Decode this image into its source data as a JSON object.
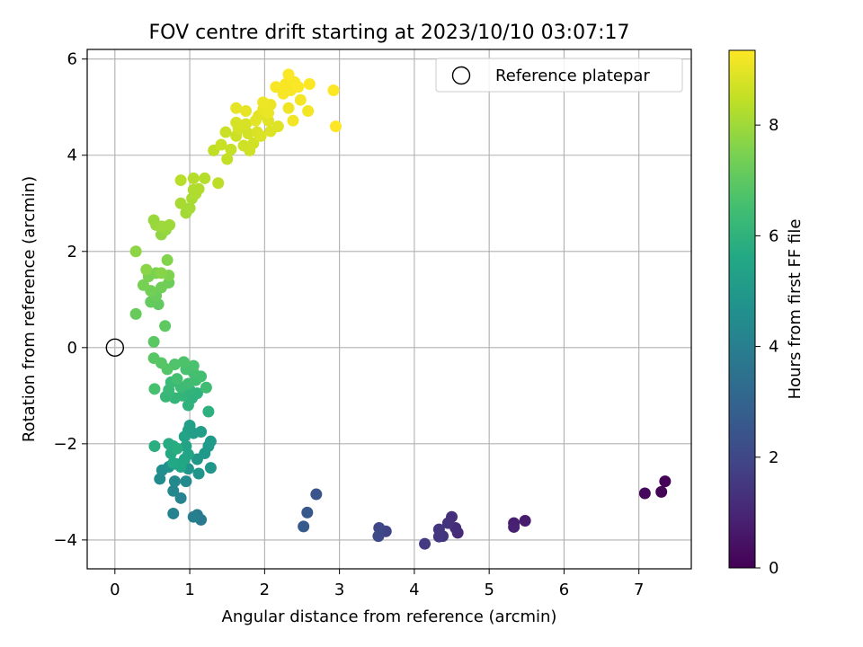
{
  "chart_data": {
    "type": "scatter",
    "title": "FOV centre drift starting at 2023/10/10 03:07:17",
    "xlabel": "Angular distance from reference (arcmin)",
    "ylabel": "Rotation from reference (arcmin)",
    "xlim": [
      -0.37,
      7.7
    ],
    "ylim": [
      -4.6,
      6.2
    ],
    "xticks": [
      0,
      1,
      2,
      3,
      4,
      5,
      6,
      7
    ],
    "yticks": [
      -4,
      -2,
      0,
      2,
      4,
      6
    ],
    "xtick_labels": [
      "0",
      "1",
      "2",
      "3",
      "4",
      "5",
      "6",
      "7"
    ],
    "ytick_labels": [
      "−4",
      "−2",
      "0",
      "2",
      "4",
      "6"
    ],
    "grid": true,
    "colormap": "viridis",
    "legend": {
      "placement": "top-right",
      "label": "Reference platepar",
      "marker": "open-circle"
    },
    "reference_point": {
      "x": 0,
      "y": 0
    },
    "colorbar": {
      "label": "Hours from first FF file",
      "range": [
        0,
        9.35
      ],
      "ticks": [
        0,
        2,
        4,
        6,
        8
      ],
      "tick_labels": [
        "0",
        "2",
        "4",
        "6",
        "8"
      ]
    },
    "series": [
      {
        "points": [
          [
            7.35,
            -2.78,
            0.05
          ],
          [
            7.3,
            -3.0,
            0.1
          ],
          [
            7.08,
            -3.03,
            0.2
          ],
          [
            5.48,
            -3.6,
            0.7
          ],
          [
            5.33,
            -3.65,
            0.8
          ],
          [
            5.33,
            -3.73,
            0.85
          ],
          [
            4.58,
            -3.85,
            1.1
          ],
          [
            4.55,
            -3.75,
            1.2
          ],
          [
            4.5,
            -3.52,
            1.25
          ],
          [
            4.45,
            -3.65,
            1.35
          ],
          [
            4.38,
            -3.92,
            1.4
          ],
          [
            4.33,
            -3.78,
            1.45
          ],
          [
            4.33,
            -3.93,
            1.5
          ],
          [
            4.14,
            -4.08,
            1.6
          ],
          [
            3.62,
            -3.82,
            1.9
          ],
          [
            3.53,
            -3.75,
            2.0
          ],
          [
            3.52,
            -3.92,
            2.05
          ],
          [
            2.69,
            -3.05,
            2.45
          ],
          [
            2.57,
            -3.43,
            2.55
          ],
          [
            2.52,
            -3.72,
            2.65
          ],
          [
            1.15,
            -3.58,
            3.8
          ],
          [
            1.1,
            -3.48,
            3.9
          ],
          [
            1.05,
            -3.52,
            4.0
          ],
          [
            0.78,
            -3.45,
            4.1
          ],
          [
            0.88,
            -3.13,
            4.2
          ],
          [
            0.78,
            -2.98,
            4.3
          ],
          [
            0.8,
            -2.78,
            4.4
          ],
          [
            0.95,
            -2.78,
            4.45
          ],
          [
            0.6,
            -2.73,
            4.5
          ],
          [
            0.63,
            -2.55,
            4.6
          ],
          [
            0.72,
            -2.48,
            4.7
          ],
          [
            0.82,
            -2.42,
            4.75
          ],
          [
            0.98,
            -2.52,
            4.8
          ],
          [
            1.12,
            -2.62,
            4.85
          ],
          [
            1.28,
            -2.5,
            4.9
          ],
          [
            1.1,
            -2.32,
            4.95
          ],
          [
            1.2,
            -2.2,
            5.0
          ],
          [
            1.25,
            -2.05,
            5.05
          ],
          [
            1.28,
            -1.95,
            5.1
          ],
          [
            1.15,
            -1.75,
            5.15
          ],
          [
            1.05,
            -1.78,
            5.2
          ],
          [
            1.0,
            -1.62,
            5.25
          ],
          [
            0.98,
            -1.72,
            5.3
          ],
          [
            0.93,
            -1.85,
            5.35
          ],
          [
            0.95,
            -2.05,
            5.4
          ],
          [
            0.98,
            -2.22,
            5.45
          ],
          [
            0.93,
            -2.32,
            5.5
          ],
          [
            0.88,
            -2.48,
            5.55
          ],
          [
            0.78,
            -2.4,
            5.6
          ],
          [
            0.75,
            -2.2,
            5.65
          ],
          [
            0.78,
            -2.05,
            5.7
          ],
          [
            0.72,
            -2.0,
            5.75
          ],
          [
            0.83,
            -2.1,
            5.8
          ],
          [
            0.53,
            -2.05,
            5.85
          ],
          [
            1.25,
            -1.33,
            5.9
          ],
          [
            1.03,
            -1.05,
            5.95
          ],
          [
            1.1,
            -0.95,
            6.0
          ],
          [
            1.0,
            -0.88,
            6.05
          ],
          [
            0.9,
            -1.0,
            6.1
          ],
          [
            0.8,
            -1.05,
            6.15
          ],
          [
            0.68,
            -1.02,
            6.2
          ],
          [
            0.72,
            -0.88,
            6.25
          ],
          [
            0.75,
            -0.72,
            6.3
          ],
          [
            0.88,
            -0.82,
            6.35
          ],
          [
            0.98,
            -0.75,
            6.4
          ],
          [
            1.08,
            -0.68,
            6.45
          ],
          [
            1.15,
            -0.6,
            6.5
          ],
          [
            1.05,
            -0.52,
            6.55
          ],
          [
            0.95,
            -0.45,
            6.6
          ],
          [
            1.05,
            -0.38,
            6.65
          ],
          [
            0.92,
            -0.3,
            6.7
          ],
          [
            0.8,
            -0.35,
            6.75
          ],
          [
            0.7,
            -0.45,
            6.8
          ],
          [
            0.62,
            -0.32,
            6.85
          ],
          [
            0.52,
            -0.22,
            6.9
          ],
          [
            0.52,
            0.12,
            6.95
          ],
          [
            0.83,
            -0.65,
            6.55
          ],
          [
            1.22,
            -0.83,
            6.4
          ],
          [
            0.53,
            -0.86,
            6.6
          ],
          [
            0.98,
            -1.2,
            6.0
          ],
          [
            0.67,
            0.45,
            7.0
          ],
          [
            0.58,
            0.9,
            7.05
          ],
          [
            0.48,
            0.95,
            7.1
          ],
          [
            0.28,
            0.7,
            7.15
          ],
          [
            0.55,
            1.08,
            7.2
          ],
          [
            0.72,
            1.35,
            7.25
          ],
          [
            0.62,
            1.25,
            7.3
          ],
          [
            0.48,
            1.18,
            7.35
          ],
          [
            0.38,
            1.3,
            7.4
          ],
          [
            0.45,
            1.48,
            7.45
          ],
          [
            0.55,
            1.55,
            7.5
          ],
          [
            0.72,
            1.5,
            7.55
          ],
          [
            0.7,
            1.82,
            7.6
          ],
          [
            0.62,
            1.55,
            7.65
          ],
          [
            0.42,
            1.62,
            7.7
          ],
          [
            0.28,
            2.0,
            7.75
          ],
          [
            0.62,
            2.35,
            7.8
          ],
          [
            0.68,
            2.45,
            7.85
          ],
          [
            0.55,
            2.55,
            7.9
          ],
          [
            0.52,
            2.65,
            7.92
          ],
          [
            0.63,
            2.52,
            7.95
          ],
          [
            0.73,
            2.55,
            8.0
          ],
          [
            0.95,
            2.8,
            8.05
          ],
          [
            1.0,
            2.9,
            8.1
          ],
          [
            0.88,
            3.0,
            8.12
          ],
          [
            1.03,
            3.1,
            8.15
          ],
          [
            1.08,
            3.2,
            8.2
          ],
          [
            1.05,
            3.28,
            8.22
          ],
          [
            1.12,
            3.3,
            8.25
          ],
          [
            1.2,
            3.52,
            8.3
          ],
          [
            1.05,
            3.52,
            8.32
          ],
          [
            0.88,
            3.48,
            8.35
          ],
          [
            1.38,
            3.42,
            8.4
          ],
          [
            1.32,
            4.1,
            8.45
          ],
          [
            1.5,
            3.92,
            8.5
          ],
          [
            1.55,
            4.12,
            8.55
          ],
          [
            1.42,
            4.22,
            8.58
          ],
          [
            1.48,
            4.48,
            8.6
          ],
          [
            1.62,
            4.4,
            8.62
          ],
          [
            1.72,
            4.2,
            8.65
          ],
          [
            1.8,
            4.1,
            8.68
          ],
          [
            1.85,
            4.25,
            8.7
          ],
          [
            1.78,
            4.45,
            8.72
          ],
          [
            1.65,
            4.55,
            8.75
          ],
          [
            1.62,
            4.68,
            8.78
          ],
          [
            1.75,
            4.65,
            8.8
          ],
          [
            1.9,
            4.48,
            8.82
          ],
          [
            1.95,
            4.4,
            8.85
          ],
          [
            2.08,
            4.5,
            8.88
          ],
          [
            2.18,
            4.6,
            8.9
          ],
          [
            2.05,
            4.72,
            8.92
          ],
          [
            1.92,
            4.82,
            8.95
          ],
          [
            1.88,
            4.72,
            8.97
          ],
          [
            1.62,
            4.98,
            9.0
          ],
          [
            1.75,
            4.92,
            9.02
          ],
          [
            1.98,
            4.95,
            9.05
          ],
          [
            2.05,
            4.88,
            9.07
          ],
          [
            2.08,
            5.05,
            9.1
          ],
          [
            1.98,
            5.1,
            9.12
          ],
          [
            2.32,
            4.98,
            9.15
          ],
          [
            2.38,
            4.72,
            9.17
          ],
          [
            2.58,
            4.92,
            9.2
          ],
          [
            2.48,
            5.15,
            9.22
          ],
          [
            2.35,
            5.35,
            9.24
          ],
          [
            2.25,
            5.28,
            9.26
          ],
          [
            2.15,
            5.42,
            9.27
          ],
          [
            2.28,
            5.48,
            9.28
          ],
          [
            2.4,
            5.52,
            9.29
          ],
          [
            2.32,
            5.68,
            9.3
          ],
          [
            2.45,
            5.42,
            9.31
          ],
          [
            2.6,
            5.48,
            9.32
          ],
          [
            2.92,
            5.35,
            9.33
          ],
          [
            2.95,
            4.6,
            9.35
          ]
        ]
      }
    ]
  }
}
